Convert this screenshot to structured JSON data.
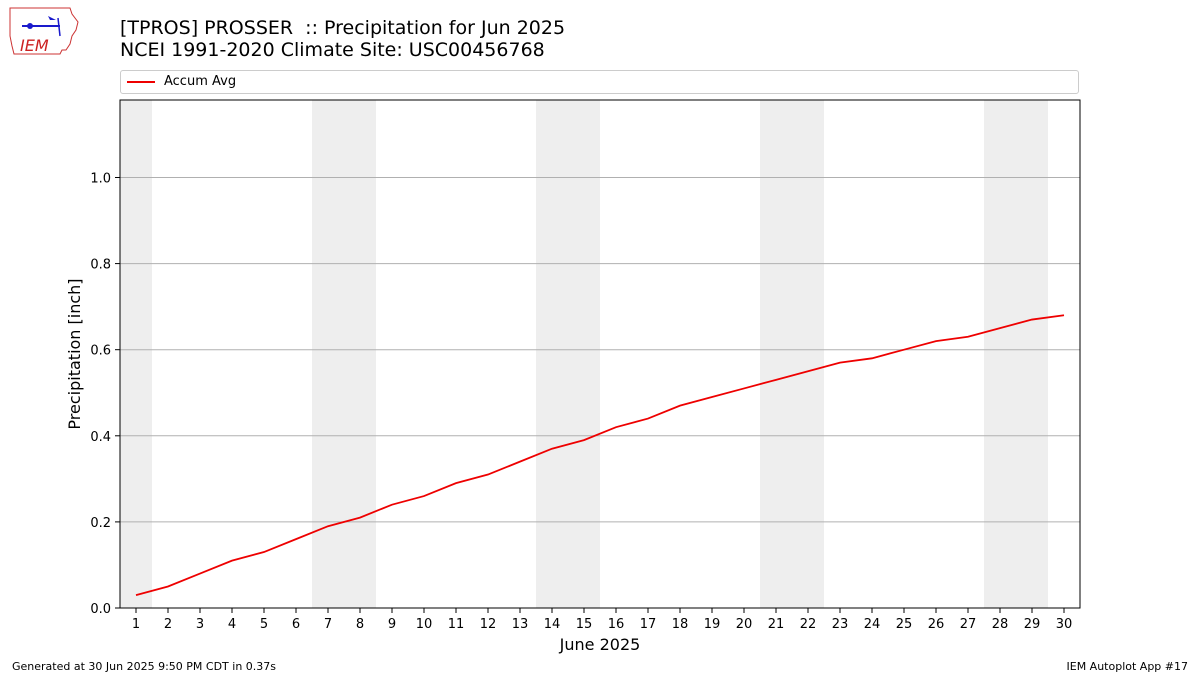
{
  "header": {
    "title_line1": "[TPROS] PROSSER  :: Precipitation for Jun 2025",
    "title_line2": "NCEI 1991-2020 Climate Site: USC00456768",
    "logo_text": "IEM"
  },
  "footer": {
    "left": "Generated at 30 Jun 2025 9:50 PM CDT in 0.37s",
    "right": "IEM Autoplot App #17"
  },
  "colors": {
    "series_line": "#ee0000",
    "weekend_band": "#eeeeee",
    "grid": "#b0b0b0"
  },
  "chart_data": {
    "type": "line",
    "title": "[TPROS] PROSSER  :: Precipitation for Jun 2025",
    "subtitle": "NCEI 1991-2020 Climate Site: USC00456768",
    "xlabel": "June 2025",
    "ylabel": "Precipitation [inch]",
    "xlim": [
      0.5,
      30.5
    ],
    "ylim": [
      0,
      1.18
    ],
    "x_ticks": [
      1,
      2,
      3,
      4,
      5,
      6,
      7,
      8,
      9,
      10,
      11,
      12,
      13,
      14,
      15,
      16,
      17,
      18,
      19,
      20,
      21,
      22,
      23,
      24,
      25,
      26,
      27,
      28,
      29,
      30
    ],
    "y_ticks": [
      0.0,
      0.2,
      0.4,
      0.6,
      0.8,
      1.0
    ],
    "y_tick_labels": [
      "0.0",
      "0.2",
      "0.4",
      "0.6",
      "0.8",
      "1.0"
    ],
    "grid": "horizontal",
    "legend_placement": "top",
    "weekend_days": [
      1,
      7,
      8,
      14,
      15,
      21,
      22,
      28,
      29
    ],
    "series": [
      {
        "name": "Accum Avg",
        "x": [
          1,
          2,
          3,
          4,
          5,
          6,
          7,
          8,
          9,
          10,
          11,
          12,
          13,
          14,
          15,
          16,
          17,
          18,
          19,
          20,
          21,
          22,
          23,
          24,
          25,
          26,
          27,
          28,
          29,
          30
        ],
        "values": [
          0.03,
          0.05,
          0.08,
          0.11,
          0.13,
          0.16,
          0.19,
          0.21,
          0.24,
          0.26,
          0.29,
          0.31,
          0.34,
          0.37,
          0.39,
          0.42,
          0.44,
          0.47,
          0.49,
          0.51,
          0.53,
          0.55,
          0.57,
          0.58,
          0.6,
          0.62,
          0.63,
          0.65,
          0.67,
          0.68
        ]
      }
    ]
  }
}
